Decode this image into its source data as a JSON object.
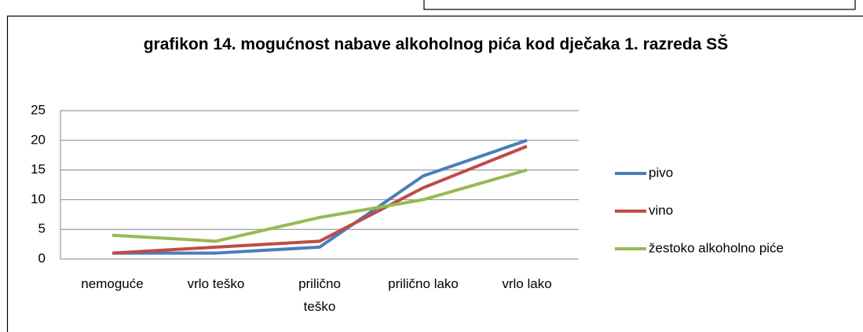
{
  "chart_data": {
    "type": "line",
    "title": "grafikon 14. mogućnost nabave alkoholnog pića kod dječaka 1. razreda SŠ",
    "categories": [
      "nemoguće",
      "vrlo teško",
      "prilično teško",
      "prilično lako",
      "vrlo lako"
    ],
    "series": [
      {
        "name": "pivo",
        "color": "#4a7ebb",
        "values": [
          1,
          1,
          2,
          14,
          20
        ]
      },
      {
        "name": "vino",
        "color": "#be4b48",
        "values": [
          1,
          2,
          3,
          12,
          19
        ]
      },
      {
        "name": "žestoko alkoholno piće",
        "color": "#98b954",
        "values": [
          4,
          3,
          7,
          10,
          15
        ]
      }
    ],
    "ylim": [
      0,
      25
    ],
    "yticks": [
      0,
      5,
      10,
      15,
      20,
      25
    ],
    "grid": true,
    "legend": "right"
  }
}
